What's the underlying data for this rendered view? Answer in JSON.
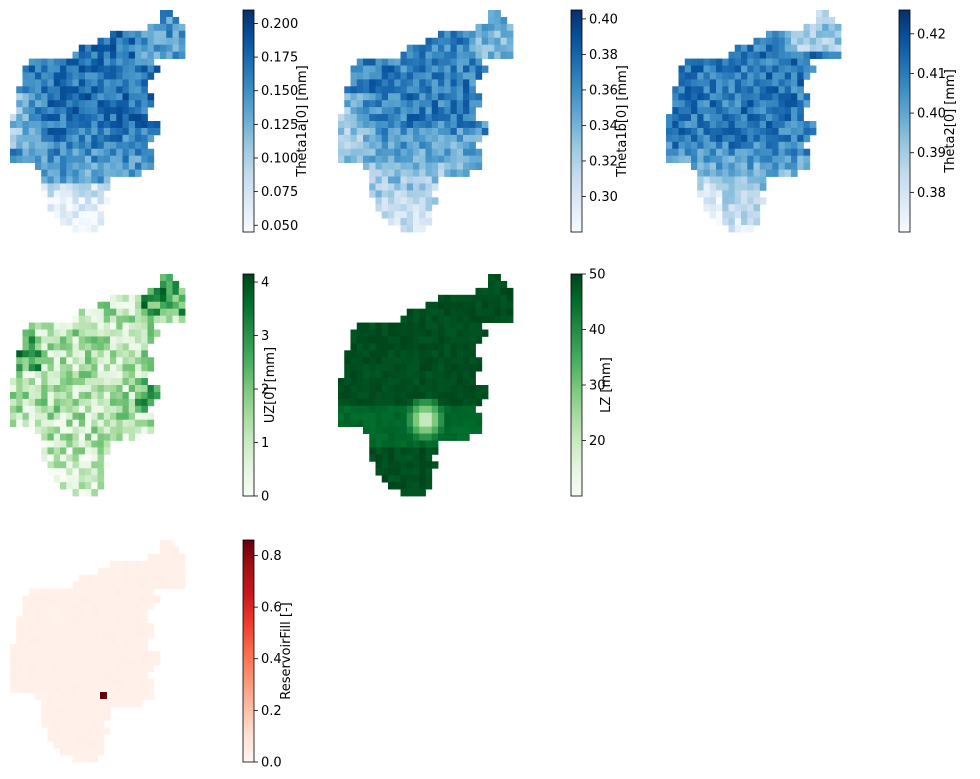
{
  "chart_data": [
    {
      "type": "heatmap",
      "colormap": "Blues",
      "colorbar_label": "Theta1a[0] [mm]",
      "colorbar_range": [
        0.045,
        0.21
      ],
      "colorbar_ticks": [
        "0.050",
        "0.075",
        "0.100",
        "0.125",
        "0.150",
        "0.175",
        "0.200"
      ],
      "tick_values": [
        0.05,
        0.075,
        0.1,
        0.125,
        0.15,
        0.175,
        0.2
      ],
      "grid": false,
      "axes_visible": false
    },
    {
      "type": "heatmap",
      "colormap": "Blues",
      "colorbar_label": "Theta1b[0] [mm]",
      "colorbar_range": [
        0.28,
        0.405
      ],
      "colorbar_ticks": [
        "0.30",
        "0.32",
        "0.34",
        "0.36",
        "0.38",
        "0.40"
      ],
      "tick_values": [
        0.3,
        0.32,
        0.34,
        0.36,
        0.38,
        0.4
      ],
      "grid": false,
      "axes_visible": false
    },
    {
      "type": "heatmap",
      "colormap": "Blues",
      "colorbar_label": "Theta2[0] [mm]",
      "colorbar_range": [
        0.37,
        0.426
      ],
      "colorbar_ticks": [
        "0.38",
        "0.39",
        "0.40",
        "0.41",
        "0.42"
      ],
      "tick_values": [
        0.38,
        0.39,
        0.4,
        0.41,
        0.42
      ],
      "grid": false,
      "axes_visible": false
    },
    {
      "type": "heatmap",
      "colormap": "Greens",
      "colorbar_label": "UZ[0] [mm]",
      "colorbar_range": [
        0,
        4.15
      ],
      "colorbar_ticks": [
        "0",
        "1",
        "2",
        "3",
        "4"
      ],
      "tick_values": [
        0,
        1,
        2,
        3,
        4
      ],
      "grid": false,
      "axes_visible": false
    },
    {
      "type": "heatmap",
      "colormap": "Greens",
      "colorbar_label": "LZ [mm]",
      "colorbar_range": [
        10,
        50
      ],
      "colorbar_ticks": [
        "20",
        "30",
        "40",
        "50"
      ],
      "tick_values": [
        20,
        30,
        40,
        50
      ],
      "grid": false,
      "axes_visible": false
    },
    {
      "type": "heatmap",
      "colormap": "Reds",
      "colorbar_label": "ReservoirFill [-]",
      "colorbar_range": [
        0,
        0.86
      ],
      "colorbar_ticks": [
        "0.0",
        "0.2",
        "0.4",
        "0.6",
        "0.8"
      ],
      "tick_values": [
        0,
        0.2,
        0.4,
        0.6,
        0.8
      ],
      "grid": false,
      "axes_visible": false
    }
  ]
}
